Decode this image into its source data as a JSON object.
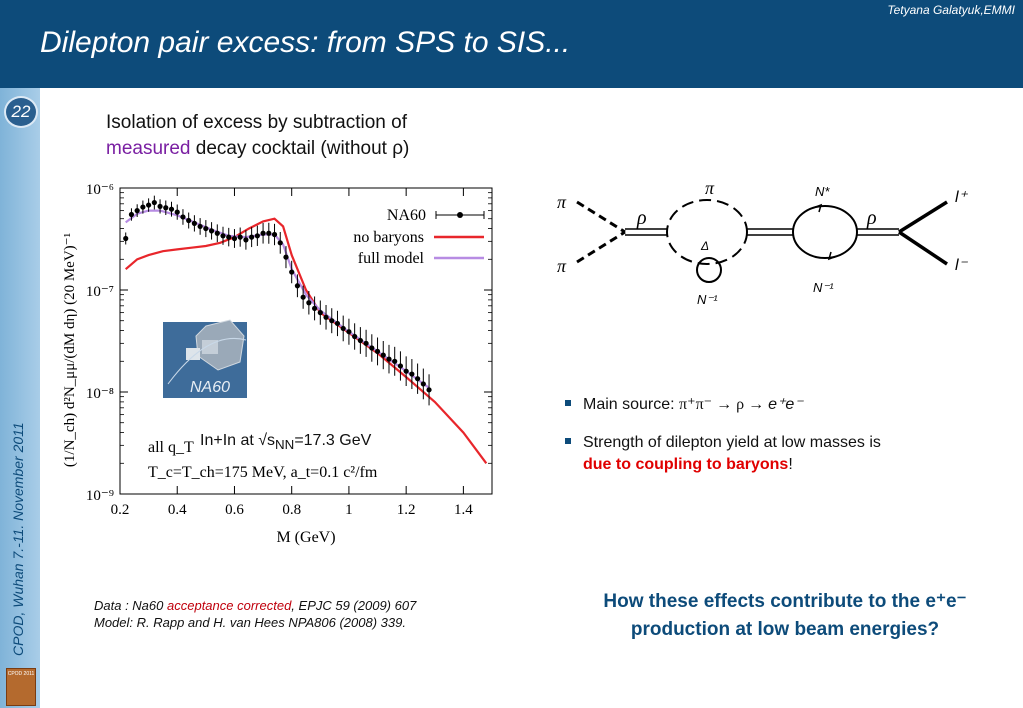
{
  "header": {
    "credit": "Tetyana Galatyuk,EMMI",
    "title": "Dilepton pair excess: from SPS to SIS..."
  },
  "sidebar": {
    "slide_number": "22",
    "conference": "CPOD, Wuhan 7.-11. November 2011",
    "logo_label": "CPOD 2011"
  },
  "intro": {
    "line1": "Isolation of excess by subtraction of",
    "measured": "measured",
    "line2_rest": " decay cocktail (without ",
    "rho": "ρ",
    "close": ")"
  },
  "plot_labels": {
    "ylabel": "(1/N_ch) d²N_μμ/(dM dη) (20 MeV)⁻¹",
    "xlabel": "M (GeV)",
    "legend": [
      "NA60",
      "no baryons",
      "full model"
    ],
    "inset1": "all q_T",
    "inset2": "T_c=T_ch=175 MeV, a_t=0.1 c²/fm",
    "logo": "NA60",
    "system": "In+In at √s",
    "system_sub": "NN",
    "system_val": "=17.3 GeV"
  },
  "chart_data": {
    "type": "scatter",
    "x_axis": {
      "label": "M (GeV)",
      "range": [
        0.2,
        1.5
      ],
      "ticks": [
        "0.2",
        "0.4",
        "0.6",
        "0.8",
        "1",
        "1.2",
        "1.4"
      ]
    },
    "y_axis": {
      "scale": "log",
      "range": [
        1e-09,
        1e-06
      ],
      "ticks": [
        "10⁻⁶",
        "10⁻⁷",
        "10⁻⁸",
        "10⁻⁹"
      ]
    },
    "legend_position": "top-right",
    "series": [
      {
        "name": "NA60",
        "color": "#000000",
        "x": [
          0.22,
          0.24,
          0.26,
          0.28,
          0.3,
          0.32,
          0.34,
          0.36,
          0.38,
          0.4,
          0.42,
          0.44,
          0.46,
          0.48,
          0.5,
          0.52,
          0.54,
          0.56,
          0.58,
          0.6,
          0.62,
          0.64,
          0.66,
          0.68,
          0.7,
          0.72,
          0.74,
          0.76,
          0.78,
          0.8,
          0.82,
          0.84,
          0.86,
          0.88,
          0.9,
          0.92,
          0.94,
          0.96,
          0.98,
          1.0,
          1.02,
          1.04,
          1.06,
          1.08,
          1.1,
          1.12,
          1.14,
          1.16,
          1.18,
          1.2,
          1.22,
          1.24,
          1.26,
          1.28
        ],
        "y": [
          3.2e-07,
          5.5e-07,
          6e-07,
          6.5e-07,
          6.8e-07,
          7.2e-07,
          6.6e-07,
          6.4e-07,
          6.2e-07,
          5.8e-07,
          5.2e-07,
          4.8e-07,
          4.5e-07,
          4.2e-07,
          4e-07,
          3.8e-07,
          3.6e-07,
          3.4e-07,
          3.3e-07,
          3.2e-07,
          3.3e-07,
          3.1e-07,
          3.3e-07,
          3.4e-07,
          3.6e-07,
          3.6e-07,
          3.5e-07,
          2.9e-07,
          2.1e-07,
          1.5e-07,
          1.1e-07,
          8.5e-08,
          7.5e-08,
          6.6e-08,
          6e-08,
          5.4e-08,
          5e-08,
          4.7e-08,
          4.2e-08,
          3.9e-08,
          3.5e-08,
          3.2e-08,
          3e-08,
          2.7e-08,
          2.5e-08,
          2.3e-08,
          2.1e-08,
          2e-08,
          1.8e-08,
          1.6e-08,
          1.5e-08,
          1.35e-08,
          1.2e-08,
          1.05e-08
        ]
      },
      {
        "name": "no baryons",
        "color": "#e8262b",
        "x": [
          0.22,
          0.26,
          0.3,
          0.35,
          0.4,
          0.45,
          0.5,
          0.55,
          0.6,
          0.65,
          0.7,
          0.74,
          0.77,
          0.8,
          0.85,
          0.9,
          1.0,
          1.1,
          1.2,
          1.3,
          1.4,
          1.48
        ],
        "y": [
          1.6e-07,
          2e-07,
          2.2e-07,
          2.4e-07,
          2.5e-07,
          2.6e-07,
          2.7e-07,
          2.9e-07,
          3.3e-07,
          4e-07,
          4.7e-07,
          5e-07,
          4.2e-07,
          2.2e-07,
          1e-07,
          6e-08,
          3.8e-08,
          2.4e-08,
          1.4e-08,
          8e-09,
          4e-09,
          2e-09
        ]
      },
      {
        "name": "full model",
        "color": "#b78ce3",
        "x": [
          0.22,
          0.26,
          0.3,
          0.34,
          0.4,
          0.46,
          0.52,
          0.58,
          0.64,
          0.7,
          0.74,
          0.77,
          0.8,
          0.85,
          0.9,
          1.0,
          1.1,
          1.2,
          1.28
        ],
        "y": [
          4.6e-07,
          5.6e-07,
          6e-07,
          6e-07,
          5.4e-07,
          4.6e-07,
          3.9e-07,
          3.4e-07,
          3.3e-07,
          3.5e-07,
          3.5e-07,
          2.8e-07,
          1.6e-07,
          9e-08,
          6.3e-08,
          3.9e-08,
          2.5e-08,
          1.6e-08,
          1.1e-08
        ]
      }
    ]
  },
  "caption": {
    "line1_a": "Data : Na60 ",
    "line1_b": "acceptance corrected",
    "line1_c": ", EPJC 59 (2009) 607",
    "line2": "Model: R. Rapp and H. van Hees NPA806 (2008) 339."
  },
  "feynman": {
    "pi_left_top": "π",
    "pi_left_bottom": "π",
    "pi_loop": "π",
    "rho_left": "ρ",
    "rho_right": "ρ",
    "delta": "Δ",
    "n_inv_left": "N⁻¹",
    "n_star": "N*",
    "n_inv_right": "N⁻¹",
    "l_plus": "l⁺",
    "l_minus": "l⁻"
  },
  "bullets": {
    "b1_text": "Main source: ",
    "b1_formula": "π⁺π⁻ → ρ → ",
    "b1_ee": "e⁺e⁻",
    "b2_text": "Strength of dilepton yield at low masses is",
    "b2_red": "due to coupling to baryons",
    "b2_end": "!"
  },
  "question": {
    "text": "How these effects contribute to the e⁺e⁻ production at low beam energies?"
  }
}
